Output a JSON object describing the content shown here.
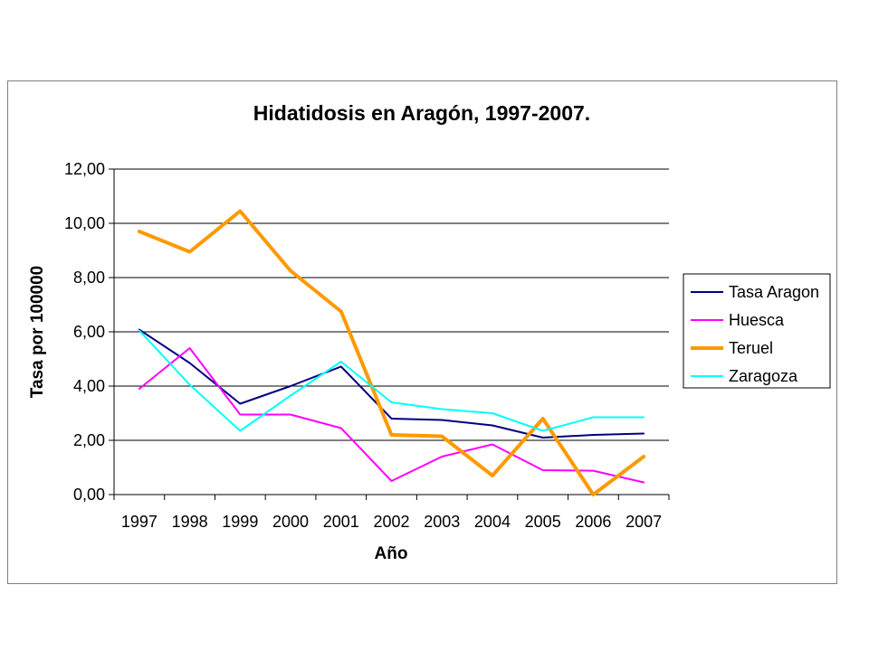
{
  "chart_data": {
    "type": "line",
    "title": "Hidatidosis en Aragón, 1997-2007.",
    "xlabel": "Año",
    "ylabel": "Tasa por 100000",
    "categories": [
      "1997",
      "1998",
      "1999",
      "2000",
      "2001",
      "2002",
      "2003",
      "2004",
      "2005",
      "2006",
      "2007"
    ],
    "y_tick_labels": [
      "0,00",
      "2,00",
      "4,00",
      "6,00",
      "8,00",
      "10,00",
      "12,00"
    ],
    "ylim": [
      0,
      12
    ],
    "grid": true,
    "legend_position": "right",
    "series": [
      {
        "name": "Tasa Aragon",
        "color": "#000080",
        "width": 2,
        "values": [
          6.08,
          4.85,
          3.35,
          4.0,
          4.72,
          2.8,
          2.75,
          2.55,
          2.1,
          2.2,
          2.25
        ]
      },
      {
        "name": "Huesca",
        "color": "#ff00ff",
        "width": 2,
        "values": [
          3.9,
          5.4,
          2.95,
          2.95,
          2.45,
          0.5,
          1.4,
          1.85,
          0.9,
          0.88,
          0.45
        ]
      },
      {
        "name": "Teruel",
        "color": "#ff9900",
        "width": 4,
        "values": [
          9.7,
          8.95,
          10.45,
          8.25,
          6.75,
          2.2,
          2.15,
          0.7,
          2.8,
          0.0,
          1.4
        ]
      },
      {
        "name": "Zaragoza",
        "color": "#00ffff",
        "width": 2,
        "values": [
          6.05,
          4.05,
          2.35,
          3.65,
          4.9,
          3.4,
          3.15,
          3.0,
          2.35,
          2.85,
          2.85
        ]
      }
    ]
  }
}
